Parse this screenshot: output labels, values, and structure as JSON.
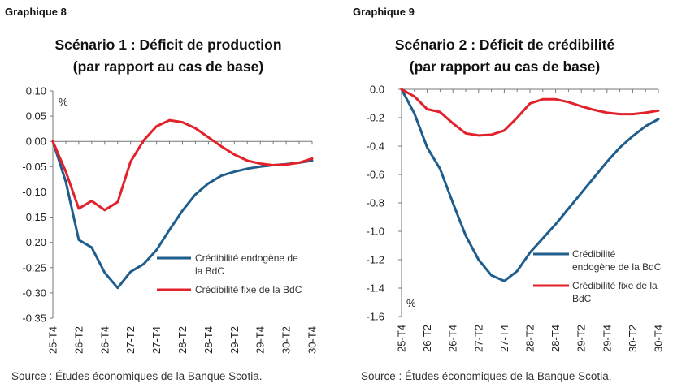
{
  "charts": [
    {
      "graph_label": "Graphique 8",
      "title_line1": "Scénario 1 : Déficit de production",
      "title_line2": "(par rapport au cas de base)",
      "source": "Source : Études économiques de la Banque Scotia.",
      "unit_label": "%",
      "legend": [
        {
          "line1": "Crédibilité endogène de",
          "line2": "la BdC"
        },
        {
          "line1": "Crédibilité fixe de la BdC",
          "line2": ""
        }
      ],
      "yticks": [
        "0.10",
        "0.05",
        "0.00",
        "-0.05",
        "-0.10",
        "-0.15",
        "-0.20",
        "-0.25",
        "-0.30",
        "-0.35"
      ],
      "xticks": [
        "25-T4",
        "26-T2",
        "26-T4",
        "27-T2",
        "27-T4",
        "28-T2",
        "28-T4",
        "29-T2",
        "29-T4",
        "30-T2",
        "30-T4"
      ]
    },
    {
      "graph_label": "Graphique 9",
      "title_line1": "Scénario 2 : Déficit de crédibilité",
      "title_line2": "(par rapport au cas de base)",
      "source": "Source : Études économiques de la Banque Scotia.",
      "unit_label": "%",
      "legend": [
        {
          "line1": "Crédibilité",
          "line2": "endogène de la BdC"
        },
        {
          "line1": "Crédibilité fixe de la",
          "line2": "BdC"
        }
      ],
      "yticks": [
        "0.0",
        "-0.2",
        "-0.4",
        "-0.6",
        "-0.8",
        "-1.0",
        "-1.2",
        "-1.4",
        "-1.6"
      ],
      "xticks": [
        "25-T4",
        "26-T2",
        "26-T4",
        "27-T2",
        "27-T4",
        "28-T2",
        "28-T4",
        "29-T2",
        "29-T4",
        "30-T2",
        "30-T4"
      ]
    }
  ],
  "colors": {
    "blue": "#1f5e8c",
    "red": "#e2212b"
  },
  "chart_data": [
    {
      "type": "line",
      "title": "Scénario 1 : Déficit de production (par rapport au cas de base)",
      "ylabel": "%",
      "ylim": [
        -0.35,
        0.1
      ],
      "x": [
        0,
        1,
        2,
        3,
        4,
        5,
        6,
        7,
        8,
        9,
        10,
        11,
        12,
        13,
        14,
        15,
        16,
        17,
        18,
        19,
        20
      ],
      "x_tick_labels": [
        "25-T4",
        "26-T2",
        "26-T4",
        "27-T2",
        "27-T4",
        "28-T2",
        "28-T4",
        "29-T2",
        "29-T4",
        "30-T2",
        "30-T4"
      ],
      "series": [
        {
          "name": "Crédibilité endogène de la BdC",
          "color": "#1f5e8c",
          "values": [
            0.0,
            -0.08,
            -0.195,
            -0.21,
            -0.26,
            -0.29,
            -0.258,
            -0.243,
            -0.215,
            -0.175,
            -0.137,
            -0.105,
            -0.083,
            -0.068,
            -0.06,
            -0.054,
            -0.05,
            -0.047,
            -0.045,
            -0.042,
            -0.038
          ]
        },
        {
          "name": "Crédibilité fixe de la BdC",
          "color": "#e2212b",
          "values": [
            0.0,
            -0.06,
            -0.133,
            -0.118,
            -0.136,
            -0.12,
            -0.04,
            0.002,
            0.03,
            0.042,
            0.038,
            0.026,
            0.008,
            -0.01,
            -0.026,
            -0.038,
            -0.044,
            -0.047,
            -0.046,
            -0.042,
            -0.034
          ]
        }
      ],
      "grid": false,
      "legend_position": "bottom-right"
    },
    {
      "type": "line",
      "title": "Scénario 2 : Déficit de crédibilité (par rapport au cas de base)",
      "ylabel": "%",
      "ylim": [
        -1.6,
        0.0
      ],
      "x": [
        0,
        1,
        2,
        3,
        4,
        5,
        6,
        7,
        8,
        9,
        10,
        11,
        12,
        13,
        14,
        15,
        16,
        17,
        18,
        19,
        20
      ],
      "x_tick_labels": [
        "25-T4",
        "26-T2",
        "26-T4",
        "27-T2",
        "27-T4",
        "28-T2",
        "28-T4",
        "29-T2",
        "29-T4",
        "30-T2",
        "30-T4"
      ],
      "series": [
        {
          "name": "Crédibilité endogène de la BdC",
          "color": "#1f5e8c",
          "values": [
            0.0,
            -0.17,
            -0.41,
            -0.56,
            -0.8,
            -1.03,
            -1.2,
            -1.31,
            -1.35,
            -1.28,
            -1.15,
            -1.05,
            -0.95,
            -0.84,
            -0.73,
            -0.62,
            -0.51,
            -0.41,
            -0.33,
            -0.26,
            -0.21
          ]
        },
        {
          "name": "Crédibilité fixe de la BdC",
          "color": "#e2212b",
          "values": [
            0.0,
            -0.05,
            -0.14,
            -0.16,
            -0.24,
            -0.31,
            -0.325,
            -0.32,
            -0.29,
            -0.2,
            -0.1,
            -0.07,
            -0.07,
            -0.09,
            -0.12,
            -0.145,
            -0.165,
            -0.175,
            -0.175,
            -0.165,
            -0.15
          ]
        }
      ],
      "grid": false,
      "legend_position": "bottom-right"
    }
  ]
}
